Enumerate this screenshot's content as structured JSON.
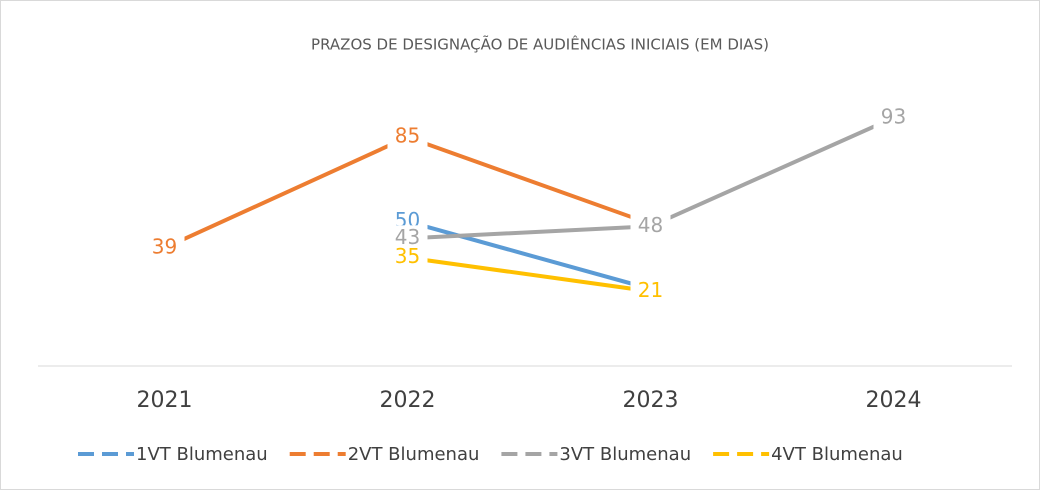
{
  "chart_data": {
    "type": "line",
    "title": "PRAZOS DE DESIGNAÇÃO DE AUDIÊNCIAS INICIAIS (EM DIAS)",
    "categories": [
      "2021",
      "2022",
      "2023",
      "2024"
    ],
    "series": [
      {
        "name": "1VT Blumenau",
        "color": "#5b9bd5",
        "values": [
          null,
          50,
          22,
          null
        ]
      },
      {
        "name": "2VT Blumenau",
        "color": "#ed7d31",
        "values": [
          39,
          85,
          49,
          null
        ]
      },
      {
        "name": "3VT Blumenau",
        "color": "#a5a5a5",
        "values": [
          null,
          43,
          48,
          93
        ]
      },
      {
        "name": "4VT Blumenau",
        "color": "#ffc000",
        "values": [
          null,
          35,
          21,
          null
        ]
      }
    ],
    "ylim": [
      -10,
      100
    ],
    "legend": "bottom"
  }
}
